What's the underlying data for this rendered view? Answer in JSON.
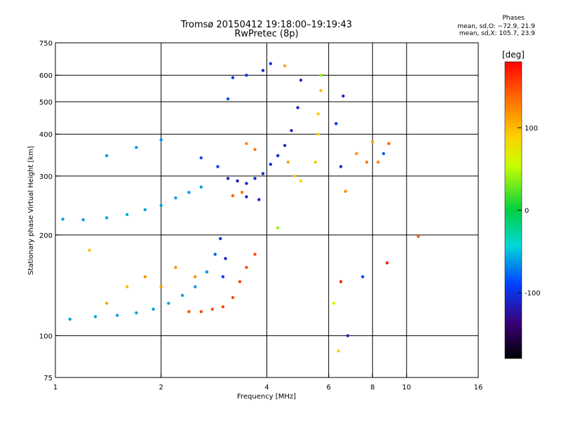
{
  "header": {
    "title_line1": "Tromsø 20150412 19:18:00–19:19:43",
    "title_line2": "RwPretec (8p)",
    "phase_title": "Phases",
    "phase_o": "mean, sd,O: −72.9, 21.9",
    "phase_x": "mean, sd,X: 105.7, 23.9"
  },
  "chart_data": {
    "type": "scatter",
    "title": "Tromsø 20150412 19:18:00–19:19:43",
    "subtitle": "RwPretec (8p)",
    "xlabel": "Frequency [MHz]",
    "ylabel": "Stationary phase Virtual Height [km]",
    "x_scale": "log",
    "y_scale": "log",
    "xlim": [
      1,
      16
    ],
    "ylim": [
      75,
      750
    ],
    "x_ticks": [
      1,
      2,
      4,
      6,
      8,
      10,
      16
    ],
    "x_tick_labels": [
      "1",
      "2",
      "4",
      "6",
      "8",
      "10",
      "16"
    ],
    "x_grid": [
      2,
      4,
      6,
      8,
      10
    ],
    "y_ticks": [
      75,
      100,
      200,
      300,
      400,
      500,
      600,
      750
    ],
    "y_tick_labels": [
      "75",
      "100",
      "200",
      "300",
      "400",
      "500",
      "600",
      "750"
    ],
    "y_grid": [
      100,
      200,
      300,
      400,
      500,
      600
    ],
    "grid": true,
    "colorbar": {
      "label": "[deg]",
      "range": [
        -180,
        180
      ],
      "ticks": [
        100,
        0,
        -100
      ],
      "tick_labels": [
        "100",
        "0",
        "-100"
      ]
    },
    "series": [
      {
        "x": 1.05,
        "y": 223,
        "phase": -60
      },
      {
        "x": 1.2,
        "y": 222,
        "phase": -62
      },
      {
        "x": 1.4,
        "y": 225,
        "phase": -60
      },
      {
        "x": 1.6,
        "y": 230,
        "phase": -58
      },
      {
        "x": 1.8,
        "y": 238,
        "phase": -60
      },
      {
        "x": 2.0,
        "y": 245,
        "phase": -62
      },
      {
        "x": 2.2,
        "y": 258,
        "phase": -60
      },
      {
        "x": 2.4,
        "y": 268,
        "phase": -62
      },
      {
        "x": 2.6,
        "y": 278,
        "phase": -60
      },
      {
        "x": 1.4,
        "y": 345,
        "phase": -60
      },
      {
        "x": 1.7,
        "y": 365,
        "phase": -62
      },
      {
        "x": 2.0,
        "y": 385,
        "phase": -65
      },
      {
        "x": 2.6,
        "y": 340,
        "phase": -88
      },
      {
        "x": 2.9,
        "y": 320,
        "phase": -95
      },
      {
        "x": 3.1,
        "y": 295,
        "phase": -110
      },
      {
        "x": 3.3,
        "y": 290,
        "phase": -115
      },
      {
        "x": 3.5,
        "y": 285,
        "phase": -110
      },
      {
        "x": 3.7,
        "y": 295,
        "phase": -108
      },
      {
        "x": 3.9,
        "y": 305,
        "phase": -110
      },
      {
        "x": 4.1,
        "y": 325,
        "phase": -105
      },
      {
        "x": 4.3,
        "y": 345,
        "phase": -108
      },
      {
        "x": 4.5,
        "y": 370,
        "phase": -110
      },
      {
        "x": 4.7,
        "y": 410,
        "phase": -112
      },
      {
        "x": 4.9,
        "y": 480,
        "phase": -110
      },
      {
        "x": 5.0,
        "y": 580,
        "phase": -108
      },
      {
        "x": 3.5,
        "y": 260,
        "phase": -108
      },
      {
        "x": 3.8,
        "y": 255,
        "phase": -110
      },
      {
        "x": 3.4,
        "y": 268,
        "phase": 130
      },
      {
        "x": 3.2,
        "y": 262,
        "phase": 140
      },
      {
        "x": 3.5,
        "y": 375,
        "phase": 125
      },
      {
        "x": 3.7,
        "y": 360,
        "phase": 130
      },
      {
        "x": 4.6,
        "y": 330,
        "phase": 110
      },
      {
        "x": 4.8,
        "y": 300,
        "phase": 90
      },
      {
        "x": 5.0,
        "y": 290,
        "phase": 85
      },
      {
        "x": 5.5,
        "y": 330,
        "phase": 95
      },
      {
        "x": 5.6,
        "y": 400,
        "phase": 90
      },
      {
        "x": 5.6,
        "y": 460,
        "phase": 95
      },
      {
        "x": 5.7,
        "y": 540,
        "phase": 100
      },
      {
        "x": 5.7,
        "y": 600,
        "phase": 40
      },
      {
        "x": 6.3,
        "y": 430,
        "phase": -95
      },
      {
        "x": 6.5,
        "y": 320,
        "phase": -105
      },
      {
        "x": 6.6,
        "y": 520,
        "phase": -110
      },
      {
        "x": 6.7,
        "y": 270,
        "phase": 120
      },
      {
        "x": 7.2,
        "y": 350,
        "phase": 120
      },
      {
        "x": 7.7,
        "y": 330,
        "phase": 130
      },
      {
        "x": 8.0,
        "y": 380,
        "phase": 110
      },
      {
        "x": 8.3,
        "y": 330,
        "phase": 125
      },
      {
        "x": 8.6,
        "y": 350,
        "phase": -80
      },
      {
        "x": 8.9,
        "y": 375,
        "phase": 140
      },
      {
        "x": 3.1,
        "y": 510,
        "phase": -85
      },
      {
        "x": 3.2,
        "y": 590,
        "phase": -95
      },
      {
        "x": 3.5,
        "y": 600,
        "phase": -100
      },
      {
        "x": 3.9,
        "y": 620,
        "phase": -110
      },
      {
        "x": 4.1,
        "y": 650,
        "phase": -100
      },
      {
        "x": 4.5,
        "y": 640,
        "phase": 110
      },
      {
        "x": 1.1,
        "y": 112,
        "phase": -60
      },
      {
        "x": 1.3,
        "y": 114,
        "phase": -58
      },
      {
        "x": 1.5,
        "y": 115,
        "phase": -60
      },
      {
        "x": 1.7,
        "y": 117,
        "phase": -60
      },
      {
        "x": 1.9,
        "y": 120,
        "phase": -62
      },
      {
        "x": 2.1,
        "y": 125,
        "phase": -58
      },
      {
        "x": 2.3,
        "y": 132,
        "phase": -60
      },
      {
        "x": 2.5,
        "y": 140,
        "phase": -62
      },
      {
        "x": 2.7,
        "y": 155,
        "phase": -65
      },
      {
        "x": 2.85,
        "y": 175,
        "phase": -80
      },
      {
        "x": 2.95,
        "y": 195,
        "phase": -100
      },
      {
        "x": 3.05,
        "y": 170,
        "phase": -110
      },
      {
        "x": 3.0,
        "y": 150,
        "phase": -95
      },
      {
        "x": 2.4,
        "y": 118,
        "phase": 145
      },
      {
        "x": 2.6,
        "y": 118,
        "phase": 150
      },
      {
        "x": 2.8,
        "y": 120,
        "phase": 148
      },
      {
        "x": 3.0,
        "y": 122,
        "phase": 150
      },
      {
        "x": 3.2,
        "y": 130,
        "phase": 150
      },
      {
        "x": 3.35,
        "y": 145,
        "phase": 155
      },
      {
        "x": 3.5,
        "y": 160,
        "phase": 150
      },
      {
        "x": 3.7,
        "y": 175,
        "phase": 148
      },
      {
        "x": 1.4,
        "y": 125,
        "phase": 110
      },
      {
        "x": 1.6,
        "y": 140,
        "phase": 100
      },
      {
        "x": 1.8,
        "y": 150,
        "phase": 120
      },
      {
        "x": 2.0,
        "y": 140,
        "phase": 115
      },
      {
        "x": 2.2,
        "y": 160,
        "phase": 120
      },
      {
        "x": 2.5,
        "y": 150,
        "phase": 125
      },
      {
        "x": 1.25,
        "y": 180,
        "phase": 100
      },
      {
        "x": 4.3,
        "y": 210,
        "phase": 40
      },
      {
        "x": 6.4,
        "y": 90,
        "phase": 90
      },
      {
        "x": 6.8,
        "y": 100,
        "phase": -110
      },
      {
        "x": 7.5,
        "y": 150,
        "phase": -90
      },
      {
        "x": 8.8,
        "y": 165,
        "phase": 165
      },
      {
        "x": 10.8,
        "y": 198,
        "phase": 140
      },
      {
        "x": 6.5,
        "y": 145,
        "phase": 165
      },
      {
        "x": 6.2,
        "y": 125,
        "phase": 60
      }
    ]
  }
}
